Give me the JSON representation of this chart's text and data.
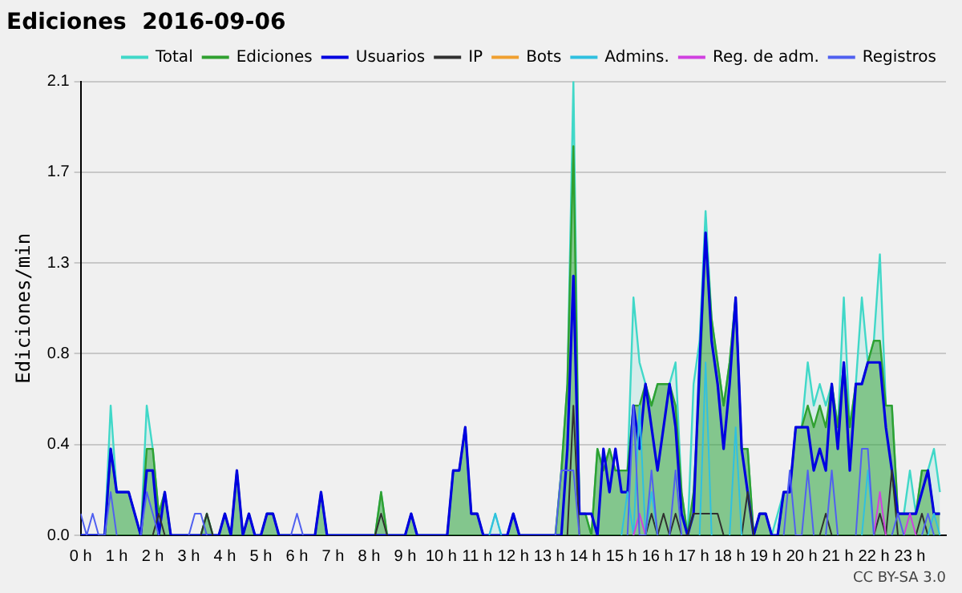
{
  "chart_data": {
    "type": "line",
    "title": "Ediciones  2016-09-06",
    "ylabel": "Ediciones/min",
    "xlim": [
      0,
      24
    ],
    "xticks": [
      {
        "value": 0,
        "label": "0 h"
      },
      {
        "value": 1,
        "label": "1 h"
      },
      {
        "value": 2,
        "label": "2 h"
      },
      {
        "value": 3,
        "label": "3 h"
      },
      {
        "value": 4,
        "label": "4 h"
      },
      {
        "value": 5,
        "label": "5 h"
      },
      {
        "value": 6,
        "label": "6 h"
      },
      {
        "value": 7,
        "label": "7 h"
      },
      {
        "value": 8,
        "label": "8 h"
      },
      {
        "value": 9,
        "label": "9 h"
      },
      {
        "value": 10,
        "label": "10 h"
      },
      {
        "value": 11,
        "label": "11 h"
      },
      {
        "value": 12,
        "label": "12 h"
      },
      {
        "value": 13,
        "label": "13 h"
      },
      {
        "value": 14,
        "label": "14 h"
      },
      {
        "value": 15,
        "label": "15 h"
      },
      {
        "value": 16,
        "label": "16 h"
      },
      {
        "value": 17,
        "label": "17 h"
      },
      {
        "value": 18,
        "label": "18 h"
      },
      {
        "value": 19,
        "label": "19 h"
      },
      {
        "value": 20,
        "label": "20 h"
      },
      {
        "value": 21,
        "label": "21 h"
      },
      {
        "value": 22,
        "label": "22 h"
      },
      {
        "value": 23,
        "label": "23 h"
      }
    ],
    "ylim": [
      0,
      2.1
    ],
    "yticks": [
      {
        "value": 0,
        "label": "0.0"
      },
      {
        "value": 0.42,
        "label": "0.4"
      },
      {
        "value": 0.84,
        "label": "0.8"
      },
      {
        "value": 1.26,
        "label": "1.3"
      },
      {
        "value": 1.68,
        "label": "1.7"
      },
      {
        "value": 2.1,
        "label": "2.1"
      }
    ],
    "grid": "y",
    "legend": "top right",
    "marker": "none",
    "annotations": [
      "CC BY-SA 3.0"
    ],
    "x": [
      0,
      0.167,
      0.333,
      0.5,
      0.667,
      0.833,
      1,
      1.167,
      1.333,
      1.5,
      1.667,
      1.833,
      2,
      2.167,
      2.333,
      2.5,
      2.667,
      2.833,
      3,
      3.167,
      3.333,
      3.5,
      3.667,
      3.833,
      4,
      4.167,
      4.333,
      4.5,
      4.667,
      4.833,
      5,
      5.167,
      5.333,
      5.5,
      5.667,
      5.833,
      6,
      6.167,
      6.333,
      6.5,
      6.667,
      6.833,
      7,
      7.167,
      7.333,
      7.5,
      7.667,
      7.833,
      8,
      8.167,
      8.333,
      8.5,
      8.667,
      8.833,
      9,
      9.167,
      9.333,
      9.5,
      9.667,
      9.833,
      10,
      10.167,
      10.333,
      10.5,
      10.667,
      10.833,
      11,
      11.167,
      11.333,
      11.5,
      11.667,
      11.833,
      12,
      12.167,
      12.333,
      12.5,
      12.667,
      12.833,
      13,
      13.167,
      13.333,
      13.5,
      13.667,
      13.833,
      14,
      14.167,
      14.333,
      14.5,
      14.667,
      14.833,
      15,
      15.167,
      15.333,
      15.5,
      15.667,
      15.833,
      16,
      16.167,
      16.333,
      16.5,
      16.667,
      16.833,
      17,
      17.167,
      17.333,
      17.5,
      17.667,
      17.833,
      18,
      18.167,
      18.333,
      18.5,
      18.667,
      18.833,
      19,
      19.167,
      19.333,
      19.5,
      19.667,
      19.833,
      20,
      20.167,
      20.333,
      20.5,
      20.667,
      20.833,
      21,
      21.167,
      21.333,
      21.5,
      21.667,
      21.833,
      22,
      22.167,
      22.333,
      22.5,
      22.667,
      22.833,
      23,
      23.167,
      23.333,
      23.5,
      23.667,
      23.833
    ],
    "series": [
      {
        "name": "Total",
        "type": "area",
        "color": "#40d8c8",
        "values": [
          0,
          0,
          0,
          0,
          0,
          0.6,
          0.2,
          0.2,
          0.2,
          0.1,
          0,
          0.6,
          0.4,
          0.1,
          0.2,
          0,
          0,
          0,
          0,
          0,
          0,
          0.1,
          0,
          0,
          0.1,
          0,
          0.3,
          0,
          0.1,
          0,
          0,
          0.1,
          0.1,
          0,
          0,
          0,
          0,
          0,
          0,
          0,
          0.2,
          0,
          0,
          0,
          0,
          0,
          0,
          0,
          0,
          0,
          0.2,
          0,
          0,
          0,
          0,
          0.1,
          0,
          0,
          0,
          0,
          0,
          0,
          0.3,
          0.3,
          0.5,
          0.1,
          0.1,
          0,
          0,
          0.1,
          0,
          0,
          0.1,
          0,
          0,
          0,
          0,
          0,
          0,
          0,
          0.3,
          0.7,
          2.1,
          0.1,
          0.1,
          0,
          0.4,
          0.3,
          0.4,
          0.3,
          0.3,
          0.3,
          1.1,
          0.8,
          0.7,
          0.6,
          0.7,
          0.7,
          0.7,
          0.8,
          0.2,
          0,
          0.7,
          0.9,
          1.5,
          1.0,
          0.8,
          0.6,
          0.8,
          1.1,
          0.4,
          0.4,
          0,
          0.1,
          0.1,
          0,
          0.1,
          0.2,
          0.2,
          0.5,
          0.5,
          0.8,
          0.6,
          0.7,
          0.6,
          0.7,
          0.5,
          1.1,
          0.5,
          0.7,
          1.1,
          0.8,
          0.9,
          1.3,
          0.6,
          0.6,
          0.1,
          0.1,
          0.3,
          0.1,
          0.3,
          0.3,
          0.4,
          0.2
        ]
      },
      {
        "name": "Ediciones",
        "type": "area",
        "color": "#30a030",
        "values": [
          0,
          0,
          0,
          0,
          0,
          0.4,
          0.2,
          0.2,
          0.2,
          0.1,
          0,
          0.4,
          0.4,
          0.1,
          0.2,
          0,
          0,
          0,
          0,
          0,
          0,
          0.1,
          0,
          0,
          0.1,
          0,
          0.3,
          0,
          0.1,
          0,
          0,
          0.1,
          0.1,
          0,
          0,
          0,
          0,
          0,
          0,
          0,
          0.2,
          0,
          0,
          0,
          0,
          0,
          0,
          0,
          0,
          0,
          0.2,
          0,
          0,
          0,
          0,
          0.1,
          0,
          0,
          0,
          0,
          0,
          0,
          0.3,
          0.3,
          0.5,
          0.1,
          0.1,
          0,
          0,
          0,
          0,
          0,
          0.1,
          0,
          0,
          0,
          0,
          0,
          0,
          0,
          0.3,
          0.7,
          1.8,
          0.1,
          0.1,
          0,
          0.4,
          0.3,
          0.4,
          0.3,
          0.3,
          0.3,
          0.6,
          0.6,
          0.7,
          0.6,
          0.7,
          0.7,
          0.7,
          0.6,
          0.2,
          0,
          0.2,
          0.7,
          1.4,
          1.0,
          0.8,
          0.6,
          0.8,
          1.1,
          0.4,
          0.4,
          0,
          0.1,
          0.1,
          0,
          0,
          0.2,
          0.2,
          0.5,
          0.5,
          0.6,
          0.5,
          0.6,
          0.5,
          0.7,
          0.5,
          0.8,
          0.5,
          0.7,
          0.7,
          0.8,
          0.9,
          0.9,
          0.6,
          0.6,
          0.1,
          0.1,
          0.1,
          0.1,
          0.3,
          0.3,
          0.1,
          0.1
        ]
      },
      {
        "name": "Usuarios",
        "color": "#0000e0",
        "values": [
          0,
          0,
          0,
          0,
          0,
          0.4,
          0.2,
          0.2,
          0.2,
          0.1,
          0,
          0.3,
          0.3,
          0,
          0.2,
          0,
          0,
          0,
          0,
          0,
          0,
          0,
          0,
          0,
          0.1,
          0,
          0.3,
          0,
          0.1,
          0,
          0,
          0.1,
          0.1,
          0,
          0,
          0,
          0,
          0,
          0,
          0,
          0.2,
          0,
          0,
          0,
          0,
          0,
          0,
          0,
          0,
          0,
          0,
          0,
          0,
          0,
          0,
          0.1,
          0,
          0,
          0,
          0,
          0,
          0,
          0.3,
          0.3,
          0.5,
          0.1,
          0.1,
          0,
          0,
          0,
          0,
          0,
          0.1,
          0,
          0,
          0,
          0,
          0,
          0,
          0,
          0,
          0.4,
          1.2,
          0.1,
          0.1,
          0.1,
          0,
          0.4,
          0.2,
          0.4,
          0.2,
          0.2,
          0.6,
          0.4,
          0.7,
          0.5,
          0.3,
          0.5,
          0.7,
          0.5,
          0.1,
          0,
          0.1,
          0.8,
          1.4,
          0.9,
          0.7,
          0.4,
          0.7,
          1.1,
          0.4,
          0.2,
          0,
          0.1,
          0.1,
          0,
          0,
          0.2,
          0.2,
          0.5,
          0.5,
          0.5,
          0.3,
          0.4,
          0.3,
          0.7,
          0.4,
          0.8,
          0.3,
          0.7,
          0.7,
          0.8,
          0.8,
          0.8,
          0.5,
          0.3,
          0.1,
          0.1,
          0.1,
          0.1,
          0.2,
          0.3,
          0.1,
          0.1
        ]
      },
      {
        "name": "IP",
        "color": "#303030",
        "values": [
          null,
          null,
          null,
          null,
          null,
          null,
          null,
          null,
          null,
          null,
          null,
          null,
          0,
          0.1,
          0,
          null,
          null,
          null,
          null,
          null,
          0,
          0.1,
          0,
          null,
          null,
          null,
          null,
          null,
          null,
          null,
          null,
          null,
          null,
          null,
          null,
          null,
          null,
          null,
          null,
          null,
          null,
          null,
          null,
          null,
          null,
          null,
          null,
          null,
          null,
          0,
          0.1,
          0,
          null,
          null,
          null,
          null,
          null,
          null,
          null,
          null,
          null,
          null,
          null,
          null,
          null,
          null,
          null,
          null,
          null,
          null,
          null,
          null,
          null,
          null,
          null,
          null,
          null,
          null,
          null,
          null,
          null,
          0,
          0.6,
          0,
          null,
          null,
          null,
          null,
          null,
          null,
          null,
          null,
          null,
          null,
          0,
          0.1,
          0,
          0.1,
          0,
          0.1,
          0,
          0,
          0.1,
          0.1,
          0.1,
          0.1,
          0.1,
          0,
          null,
          null,
          0,
          0.2,
          0,
          null,
          null,
          null,
          null,
          null,
          null,
          null,
          null,
          null,
          null,
          0,
          0.1,
          0,
          null,
          null,
          null,
          null,
          null,
          null,
          0,
          0.1,
          0,
          0.3,
          0,
          null,
          null,
          0,
          0.1,
          0,
          null,
          null
        ]
      },
      {
        "name": "Bots",
        "color": "#f0a030",
        "values": [
          null,
          null,
          null,
          null,
          null,
          null,
          null,
          null,
          null,
          null,
          null,
          null,
          null,
          null,
          null,
          null,
          null,
          null,
          null,
          null,
          null,
          null,
          null,
          null,
          null,
          null,
          null,
          null,
          null,
          null,
          null,
          null,
          null,
          null,
          null,
          null,
          null,
          null,
          null,
          null,
          null,
          null,
          null,
          null,
          null,
          null,
          null,
          null,
          null,
          null,
          null,
          null,
          null,
          null,
          null,
          null,
          null,
          null,
          null,
          null,
          null,
          null,
          null,
          null,
          null,
          null,
          null,
          null,
          null,
          null,
          null,
          null,
          null,
          null,
          null,
          null,
          null,
          null,
          null,
          null,
          null,
          null,
          null,
          null,
          null,
          null,
          null,
          null,
          null,
          null,
          null,
          null,
          null,
          null,
          null,
          null,
          null,
          null,
          null,
          null,
          null,
          null,
          null,
          null,
          null,
          null,
          null,
          null,
          null,
          null,
          null,
          null,
          null,
          null,
          null,
          null,
          null,
          null,
          null,
          null,
          null,
          null,
          null,
          null,
          null,
          null,
          null,
          null,
          null,
          null,
          null,
          null,
          null,
          null,
          null,
          null,
          null,
          null,
          null,
          null,
          null,
          null,
          null,
          null
        ]
      },
      {
        "name": "Admins.",
        "color": "#30c0e0",
        "values": [
          null,
          null,
          null,
          null,
          null,
          null,
          null,
          null,
          null,
          null,
          null,
          null,
          null,
          null,
          null,
          null,
          null,
          null,
          null,
          null,
          null,
          null,
          null,
          null,
          null,
          null,
          null,
          null,
          null,
          null,
          null,
          null,
          null,
          null,
          null,
          null,
          null,
          null,
          null,
          null,
          null,
          null,
          null,
          null,
          null,
          null,
          null,
          null,
          null,
          null,
          null,
          null,
          null,
          null,
          null,
          null,
          null,
          null,
          null,
          null,
          null,
          null,
          null,
          null,
          null,
          null,
          null,
          null,
          0,
          0.1,
          0,
          null,
          null,
          null,
          null,
          null,
          null,
          null,
          null,
          null,
          null,
          null,
          null,
          null,
          null,
          null,
          null,
          null,
          null,
          null,
          0,
          0.2,
          0,
          0.6,
          0,
          0.2,
          0,
          null,
          null,
          null,
          null,
          null,
          null,
          0,
          0.8,
          0,
          null,
          null,
          0,
          0.5,
          0,
          null,
          null,
          null,
          null,
          null,
          null,
          null,
          null,
          null,
          null,
          null,
          null,
          null,
          null,
          null,
          null,
          null,
          null,
          null,
          0,
          0.3,
          0,
          null,
          null,
          null,
          null,
          null,
          null,
          null,
          null,
          0,
          0.1,
          0
        ]
      },
      {
        "name": "Reg. de adm.",
        "color": "#d040e0",
        "values": [
          null,
          null,
          null,
          null,
          null,
          null,
          null,
          null,
          null,
          null,
          null,
          null,
          null,
          null,
          null,
          null,
          null,
          null,
          null,
          null,
          null,
          null,
          null,
          null,
          null,
          null,
          null,
          null,
          null,
          null,
          null,
          null,
          null,
          null,
          null,
          null,
          null,
          null,
          null,
          null,
          null,
          null,
          null,
          null,
          null,
          null,
          null,
          null,
          null,
          null,
          null,
          null,
          null,
          null,
          null,
          null,
          null,
          null,
          null,
          null,
          null,
          null,
          null,
          null,
          null,
          null,
          null,
          null,
          null,
          null,
          null,
          null,
          null,
          null,
          null,
          null,
          null,
          null,
          null,
          null,
          null,
          null,
          null,
          null,
          null,
          null,
          null,
          null,
          null,
          null,
          null,
          null,
          0,
          0.1,
          0,
          null,
          null,
          null,
          null,
          null,
          null,
          null,
          null,
          null,
          null,
          null,
          null,
          null,
          null,
          null,
          null,
          null,
          null,
          null,
          null,
          null,
          null,
          null,
          null,
          null,
          null,
          null,
          null,
          null,
          null,
          null,
          null,
          null,
          null,
          null,
          null,
          null,
          0,
          0.2,
          0,
          null,
          null,
          0,
          0.1,
          0,
          null,
          null,
          null,
          null
        ]
      },
      {
        "name": "Registros",
        "color": "#5060f0",
        "values": [
          0.1,
          0,
          0.1,
          0,
          0,
          0.2,
          0,
          null,
          null,
          null,
          0,
          0.2,
          0.1,
          0,
          null,
          null,
          null,
          null,
          0,
          0.1,
          0.1,
          0,
          null,
          null,
          null,
          null,
          null,
          null,
          null,
          null,
          null,
          null,
          null,
          null,
          null,
          0,
          0.1,
          0,
          null,
          null,
          null,
          null,
          null,
          null,
          null,
          null,
          null,
          null,
          null,
          null,
          null,
          null,
          null,
          null,
          null,
          null,
          null,
          null,
          null,
          null,
          null,
          null,
          null,
          null,
          null,
          null,
          null,
          null,
          null,
          null,
          null,
          null,
          null,
          null,
          null,
          null,
          null,
          null,
          null,
          0,
          0.3,
          0.3,
          0.3,
          0,
          null,
          null,
          null,
          null,
          null,
          null,
          null,
          0,
          0.6,
          0,
          0,
          0.3,
          0,
          null,
          0,
          0.3,
          0,
          null,
          null,
          null,
          null,
          null,
          null,
          null,
          null,
          null,
          null,
          null,
          null,
          null,
          null,
          null,
          null,
          0,
          0.3,
          0,
          0,
          0.3,
          0,
          null,
          0,
          0.3,
          0,
          null,
          null,
          0,
          0.4,
          0.4,
          0,
          null,
          null,
          0,
          0.1,
          0,
          null,
          null,
          0,
          0.1,
          0,
          null
        ]
      }
    ]
  }
}
